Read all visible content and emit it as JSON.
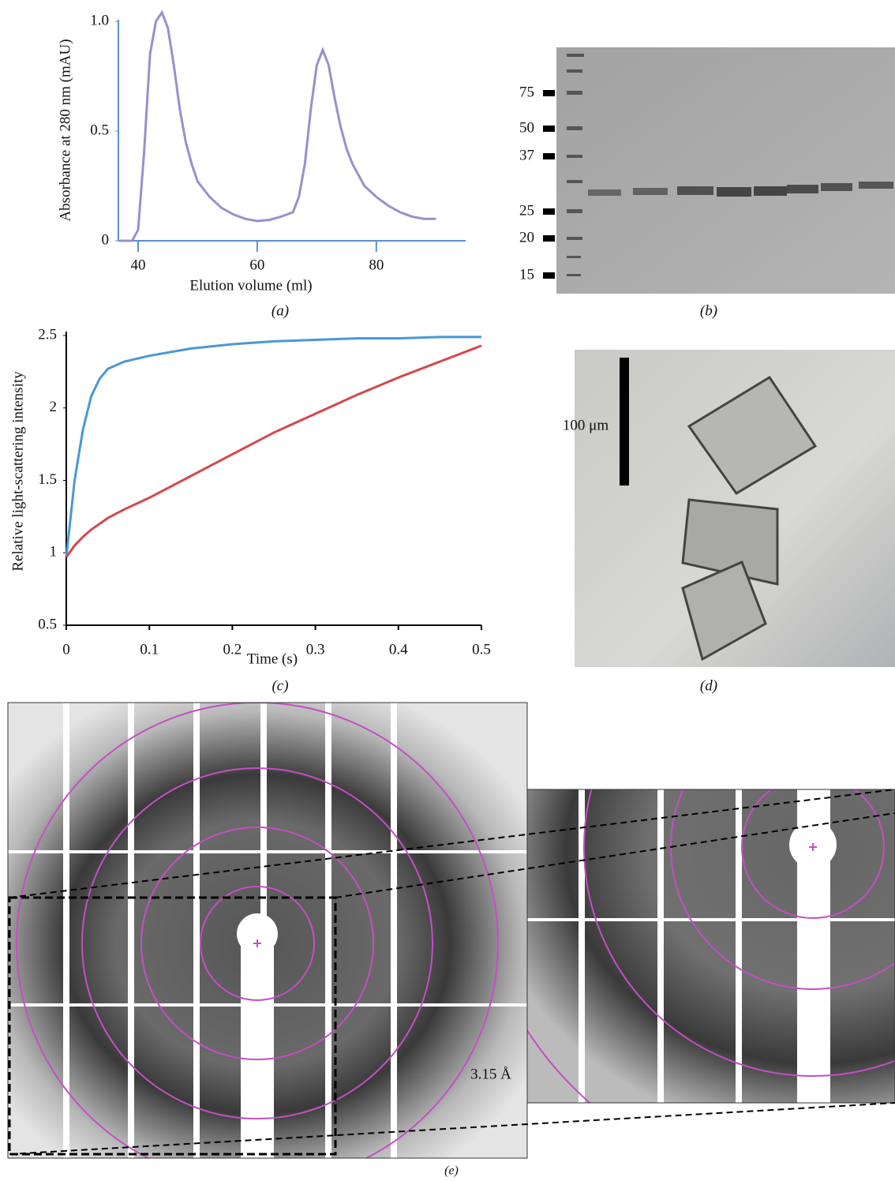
{
  "chart_data": [
    {
      "type": "line",
      "caption": "(a)",
      "xlabel": "Elution volume (ml)",
      "ylabel": "Absorbance at 280 nm (mAU)",
      "x": [
        37,
        39,
        40,
        41,
        42,
        43,
        44,
        45,
        46,
        47,
        48,
        49,
        50,
        52,
        54,
        56,
        58,
        60,
        62,
        64,
        66,
        67,
        68,
        69,
        70,
        71,
        72,
        73,
        74,
        75,
        76,
        78,
        80,
        82,
        84,
        86,
        88,
        90
      ],
      "values": [
        0,
        0,
        0.05,
        0.4,
        0.85,
        1.0,
        1.04,
        0.97,
        0.8,
        0.6,
        0.45,
        0.35,
        0.27,
        0.2,
        0.15,
        0.12,
        0.1,
        0.09,
        0.095,
        0.11,
        0.13,
        0.2,
        0.35,
        0.6,
        0.8,
        0.87,
        0.8,
        0.65,
        0.52,
        0.42,
        0.35,
        0.25,
        0.2,
        0.16,
        0.13,
        0.11,
        0.1,
        0.1
      ],
      "color": "#9a8fcc",
      "axis_color": "#5b8fd0",
      "xlim": [
        36,
        95
      ],
      "ylim": [
        0,
        1.0
      ],
      "xticks": [
        40,
        60,
        80
      ],
      "yticks": [
        0,
        0.5,
        {
          "value": 1,
          "label": "1.0"
        }
      ]
    },
    {
      "type": "line",
      "caption": "(c)",
      "xlabel": "Time (s)",
      "ylabel": "Relative light-scattering intensity",
      "x": [
        0,
        0.01,
        0.02,
        0.03,
        0.04,
        0.05,
        0.07,
        0.1,
        0.15,
        0.2,
        0.25,
        0.3,
        0.35,
        0.4,
        0.45,
        0.5
      ],
      "series": [
        {
          "color": "#4a98d6",
          "values": [
            0.97,
            1.5,
            1.85,
            2.08,
            2.2,
            2.27,
            2.32,
            2.36,
            2.41,
            2.44,
            2.46,
            2.47,
            2.48,
            2.48,
            2.49,
            2.49
          ]
        },
        {
          "color": "#d6474a",
          "values": [
            0.97,
            1.05,
            1.11,
            1.16,
            1.2,
            1.24,
            1.3,
            1.38,
            1.53,
            1.68,
            1.83,
            1.96,
            2.09,
            2.21,
            2.32,
            2.43
          ]
        }
      ],
      "axis_color": "#000",
      "xlim": [
        0,
        0.5
      ],
      "ylim": [
        0.5,
        2.5
      ],
      "xticks": [
        0,
        0.1,
        0.2,
        0.3,
        0.4,
        0.5
      ],
      "yticks": [
        0.5,
        1,
        1.5,
        2,
        2.5
      ]
    }
  ],
  "gel": {
    "caption": "(b)",
    "marker_labels": [
      75,
      50,
      37,
      25,
      20,
      15
    ]
  },
  "micrograph": {
    "caption": "(d)",
    "scale_label": "100 μm"
  },
  "diffraction": {
    "caption": "(e)",
    "resolution_label": "3.15 Å"
  }
}
